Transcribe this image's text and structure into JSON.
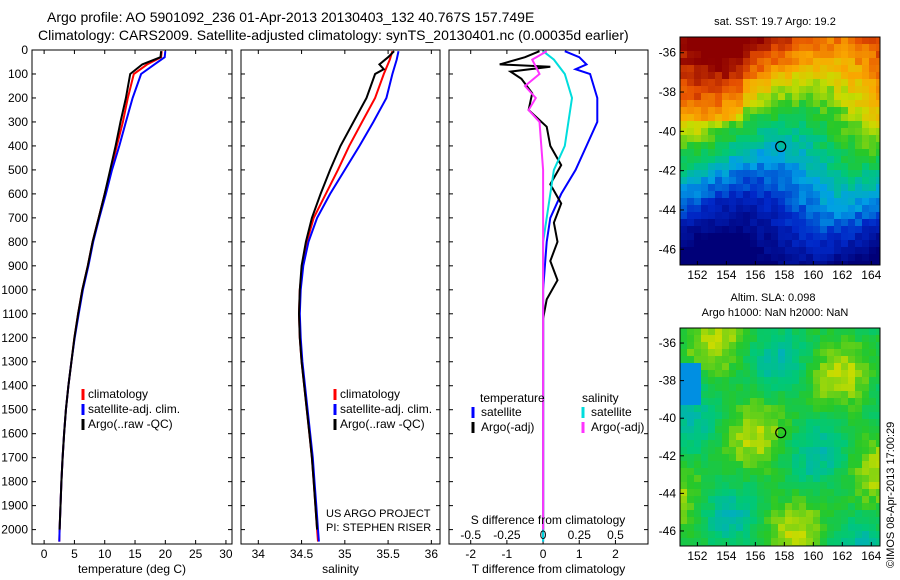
{
  "header": {
    "line1": "Argo profile: AO 5901092_236 01-Apr-2013 20130403_132 40.767S 157.749E",
    "line2": "Climatology: CARS2009. Satellite-adjusted climatology: synTS_20130401.nc (0.00035d earlier)"
  },
  "credit": {
    "project": "US ARGO PROJECT",
    "pi": "PI: STEPHEN RISER",
    "imos": "©IMOS 08-Apr-2013 17:00:29"
  },
  "colors": {
    "climatology": "#ff0000",
    "satellite": "#0000ff",
    "argo": "#000000",
    "salinity_satellite": "#00dddd",
    "salinity_argo": "#ff33ff"
  },
  "chart_data": [
    {
      "type": "line",
      "panel": "temperature",
      "xlabel": "temperature (deg C)",
      "ylabel": "",
      "xlim": [
        -2,
        31
      ],
      "ylim": [
        2060,
        0
      ],
      "xticks": [
        0,
        5,
        10,
        15,
        20,
        25,
        30
      ],
      "yticks": [
        0,
        100,
        200,
        300,
        400,
        500,
        600,
        700,
        800,
        900,
        1000,
        1100,
        1200,
        1300,
        1400,
        1500,
        1600,
        1700,
        1800,
        1900,
        2000
      ],
      "legend": [
        "climatology",
        "satellite-adj. clim.",
        "Argo(..raw -QC)"
      ],
      "legend_position": "lower-right",
      "series": [
        {
          "name": "climatology",
          "color": "#ff0000",
          "points": [
            [
              19.4,
              5
            ],
            [
              19.3,
              30
            ],
            [
              17.0,
              60
            ],
            [
              14.8,
              100
            ],
            [
              13.8,
              200
            ],
            [
              13.0,
              300
            ],
            [
              12.0,
              400
            ],
            [
              11.0,
              500
            ],
            [
              10.0,
              600
            ],
            [
              9.0,
              700
            ],
            [
              8.0,
              800
            ],
            [
              7.2,
              900
            ],
            [
              6.3,
              1000
            ],
            [
              5.6,
              1100
            ],
            [
              5.0,
              1200
            ],
            [
              4.5,
              1300
            ],
            [
              4.0,
              1400
            ],
            [
              3.6,
              1500
            ],
            [
              3.3,
              1600
            ],
            [
              3.05,
              1700
            ],
            [
              2.85,
              1800
            ],
            [
              2.7,
              1900
            ],
            [
              2.55,
              2000
            ],
            [
              2.5,
              2050
            ]
          ]
        },
        {
          "name": "satellite-adj. clim.",
          "color": "#0000ff",
          "points": [
            [
              20.0,
              5
            ],
            [
              19.9,
              30
            ],
            [
              18.2,
              60
            ],
            [
              16.0,
              100
            ],
            [
              14.6,
              200
            ],
            [
              13.5,
              300
            ],
            [
              12.4,
              400
            ],
            [
              11.2,
              500
            ],
            [
              10.2,
              600
            ],
            [
              9.1,
              700
            ],
            [
              8.1,
              800
            ],
            [
              7.3,
              900
            ],
            [
              6.4,
              1000
            ],
            [
              5.7,
              1100
            ],
            [
              5.05,
              1200
            ],
            [
              4.5,
              1300
            ],
            [
              4.0,
              1400
            ],
            [
              3.6,
              1500
            ],
            [
              3.3,
              1600
            ],
            [
              3.05,
              1700
            ],
            [
              2.85,
              1800
            ],
            [
              2.7,
              1900
            ],
            [
              2.55,
              2000
            ],
            [
              2.5,
              2050
            ]
          ]
        },
        {
          "name": "Argo(..raw -QC)",
          "color": "#000000",
          "points": [
            [
              19.3,
              5
            ],
            [
              19.2,
              30
            ],
            [
              16.2,
              60
            ],
            [
              14.2,
              100
            ],
            [
              13.5,
              200
            ],
            [
              12.6,
              300
            ],
            [
              11.8,
              400
            ],
            [
              10.9,
              500
            ],
            [
              10.0,
              600
            ],
            [
              9.0,
              700
            ],
            [
              8.0,
              800
            ],
            [
              7.2,
              900
            ],
            [
              6.3,
              1000
            ],
            [
              5.6,
              1100
            ],
            [
              5.0,
              1200
            ],
            [
              4.5,
              1300
            ],
            [
              4.0,
              1400
            ],
            [
              3.6,
              1500
            ],
            [
              3.3,
              1600
            ],
            [
              3.05,
              1700
            ],
            [
              2.85,
              1800
            ],
            [
              2.7,
              1900
            ],
            [
              2.55,
              2000
            ]
          ]
        }
      ]
    },
    {
      "type": "line",
      "panel": "salinity",
      "xlabel": "salinity",
      "ylabel": "",
      "xlim": [
        33.8,
        36.1
      ],
      "ylim": [
        2060,
        0
      ],
      "xticks": [
        34,
        34.5,
        35,
        35.5,
        36
      ],
      "legend": [
        "climatology",
        "satellite-adj. clim.",
        "Argo(..raw -QC)"
      ],
      "legend_position": "lower-right",
      "series": [
        {
          "name": "climatology",
          "color": "#ff0000",
          "points": [
            [
              35.55,
              5
            ],
            [
              35.52,
              40
            ],
            [
              35.45,
              100
            ],
            [
              35.35,
              200
            ],
            [
              35.2,
              300
            ],
            [
              35.05,
              400
            ],
            [
              34.92,
              500
            ],
            [
              34.78,
              600
            ],
            [
              34.64,
              700
            ],
            [
              34.56,
              800
            ],
            [
              34.51,
              900
            ],
            [
              34.48,
              1000
            ],
            [
              34.47,
              1100
            ],
            [
              34.48,
              1200
            ],
            [
              34.5,
              1300
            ],
            [
              34.53,
              1400
            ],
            [
              34.56,
              1500
            ],
            [
              34.59,
              1600
            ],
            [
              34.62,
              1700
            ],
            [
              34.64,
              1800
            ],
            [
              34.66,
              1900
            ],
            [
              34.68,
              2000
            ],
            [
              34.69,
              2050
            ]
          ]
        },
        {
          "name": "satellite-adj. clim.",
          "color": "#0000ff",
          "points": [
            [
              35.62,
              5
            ],
            [
              35.6,
              40
            ],
            [
              35.55,
              100
            ],
            [
              35.48,
              200
            ],
            [
              35.33,
              300
            ],
            [
              35.17,
              400
            ],
            [
              35.0,
              500
            ],
            [
              34.83,
              600
            ],
            [
              34.68,
              700
            ],
            [
              34.58,
              800
            ],
            [
              34.52,
              900
            ],
            [
              34.49,
              1000
            ],
            [
              34.48,
              1100
            ],
            [
              34.49,
              1200
            ],
            [
              34.51,
              1300
            ],
            [
              34.54,
              1400
            ],
            [
              34.57,
              1500
            ],
            [
              34.6,
              1600
            ],
            [
              34.63,
              1700
            ],
            [
              34.65,
              1800
            ],
            [
              34.67,
              1900
            ],
            [
              34.69,
              2000
            ],
            [
              34.7,
              2050
            ]
          ]
        },
        {
          "name": "Argo(..raw -QC)",
          "color": "#000000",
          "points": [
            [
              35.57,
              5
            ],
            [
              35.5,
              30
            ],
            [
              35.4,
              60
            ],
            [
              35.45,
              80
            ],
            [
              35.35,
              100
            ],
            [
              35.3,
              150
            ],
            [
              35.25,
              200
            ],
            [
              35.1,
              300
            ],
            [
              34.95,
              400
            ],
            [
              34.83,
              500
            ],
            [
              34.72,
              600
            ],
            [
              34.62,
              700
            ],
            [
              34.55,
              800
            ],
            [
              34.5,
              900
            ],
            [
              34.48,
              1000
            ],
            [
              34.47,
              1100
            ],
            [
              34.48,
              1200
            ],
            [
              34.5,
              1300
            ],
            [
              34.53,
              1400
            ],
            [
              34.56,
              1500
            ],
            [
              34.59,
              1600
            ],
            [
              34.62,
              1700
            ],
            [
              34.64,
              1800
            ],
            [
              34.66,
              1900
            ],
            [
              34.68,
              2000
            ]
          ]
        }
      ]
    },
    {
      "type": "line",
      "panel": "difference",
      "xlabel": "T difference from climatology",
      "top_label": "S difference from climatology",
      "xlim": [
        -2.6,
        2.9
      ],
      "ylim": [
        2060,
        0
      ],
      "xticks": [
        -2,
        -1,
        0,
        1,
        2
      ],
      "s_xticks": [
        "-0.5",
        "-0.25",
        "0",
        "0.25",
        "0.5"
      ],
      "s_xtick_values": [
        -2,
        -1,
        0,
        1,
        2
      ],
      "legend_groups": [
        {
          "title": "temperature",
          "items": [
            {
              "name": "satellite",
              "color": "#0000ff"
            },
            {
              "name": "Argo(-adj)",
              "color": "#000000"
            }
          ]
        },
        {
          "title": "salinity",
          "items": [
            {
              "name": "satellite",
              "color": "#00dddd"
            },
            {
              "name": "Argo(-adj)",
              "color": "#ff33ff"
            }
          ]
        }
      ],
      "series": [
        {
          "name": "temperature satellite",
          "color": "#0000ff",
          "points": [
            [
              0.6,
              5
            ],
            [
              1.0,
              30
            ],
            [
              1.2,
              60
            ],
            [
              0.9,
              80
            ],
            [
              1.3,
              100
            ],
            [
              1.5,
              200
            ],
            [
              1.5,
              300
            ],
            [
              1.2,
              400
            ],
            [
              0.9,
              500
            ],
            [
              0.5,
              600
            ],
            [
              0.2,
              700
            ],
            [
              0.1,
              800
            ],
            [
              0.05,
              900
            ],
            [
              0.0,
              1000
            ],
            [
              0.0,
              2050
            ]
          ]
        },
        {
          "name": "temperature Argo(-adj)",
          "color": "#000000",
          "points": [
            [
              -0.1,
              5
            ],
            [
              -0.5,
              30
            ],
            [
              -1.2,
              60
            ],
            [
              0.2,
              70
            ],
            [
              -0.9,
              90
            ],
            [
              -0.6,
              120
            ],
            [
              -0.3,
              180
            ],
            [
              -0.4,
              250
            ],
            [
              0.1,
              320
            ],
            [
              0.2,
              400
            ],
            [
              0.5,
              480
            ],
            [
              0.2,
              560
            ],
            [
              0.5,
              640
            ],
            [
              0.3,
              720
            ],
            [
              0.4,
              800
            ],
            [
              0.2,
              880
            ],
            [
              0.4,
              960
            ],
            [
              0.1,
              1040
            ],
            [
              0.0,
              1120
            ],
            [
              0.0,
              2000
            ]
          ]
        },
        {
          "name": "salinity satellite",
          "color": "#00dddd",
          "points": [
            [
              0.0,
              5
            ],
            [
              0.3,
              40
            ],
            [
              0.6,
              100
            ],
            [
              0.8,
              200
            ],
            [
              0.7,
              300
            ],
            [
              0.6,
              400
            ],
            [
              0.3,
              500
            ],
            [
              0.2,
              600
            ],
            [
              0.1,
              700
            ],
            [
              0.0,
              800
            ],
            [
              0.0,
              2050
            ]
          ]
        },
        {
          "name": "salinity Argo(-adj)",
          "color": "#ff33ff",
          "points": [
            [
              0.1,
              5
            ],
            [
              -0.3,
              40
            ],
            [
              -0.1,
              100
            ],
            [
              -0.5,
              150
            ],
            [
              -0.2,
              200
            ],
            [
              -0.4,
              250
            ],
            [
              -0.1,
              300
            ],
            [
              -0.05,
              400
            ],
            [
              0.0,
              500
            ],
            [
              0.0,
              2000
            ]
          ]
        }
      ]
    },
    {
      "type": "heatmap",
      "panel": "sst_map",
      "title": "sat. SST: 19.7 Argo: 19.2",
      "xlim": [
        150.8,
        164.6
      ],
      "ylim": [
        -46.8,
        -35.2
      ],
      "xticks": [
        152,
        154,
        156,
        158,
        160,
        162,
        164
      ],
      "yticks": [
        -36,
        -38,
        -40,
        -42,
        -44,
        -46
      ],
      "marker": {
        "lon": 157.75,
        "lat": -40.77
      },
      "value_gradient": "warm (dark red) in the north to cold (dark blue) in the south"
    },
    {
      "type": "heatmap",
      "panel": "sla_map",
      "title": "Altim. SLA: 0.098",
      "subtitle": "Argo h1000: NaN h2000: NaN",
      "xlim": [
        150.8,
        164.6
      ],
      "ylim": [
        -46.8,
        -35.2
      ],
      "xticks": [
        152,
        154,
        156,
        158,
        160,
        162,
        164
      ],
      "yticks": [
        -36,
        -38,
        -40,
        -42,
        -44,
        -46
      ],
      "marker": {
        "lon": 157.75,
        "lat": -40.77
      },
      "value_gradient": "mostly green with yellow and light-green patches, blue near west edge"
    }
  ]
}
